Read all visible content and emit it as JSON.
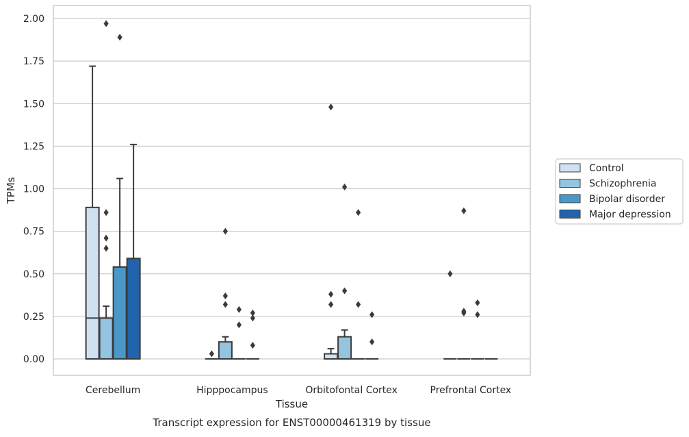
{
  "chart_data": {
    "type": "boxplot",
    "title": "",
    "caption": "Transcript expression for ENST00000461319 by tissue",
    "xlabel": "Tissue",
    "ylabel": "TPMs",
    "ylim": [
      -0.1,
      2.07
    ],
    "yticks": [
      0.0,
      0.25,
      0.5,
      0.75,
      1.0,
      1.25,
      1.5,
      1.75,
      2.0
    ],
    "ytick_labels": [
      "0.00",
      "0.25",
      "0.50",
      "0.75",
      "1.00",
      "1.25",
      "1.50",
      "1.75",
      "2.00"
    ],
    "grid": "horizontal",
    "legend_position": "right",
    "categories": [
      "Cerebellum",
      "Hipppocampus",
      "Orbitofontal Cortex",
      "Prefrontal Cortex"
    ],
    "series": [
      {
        "name": "Control",
        "color": "#d0e1f2",
        "boxes": [
          {
            "q1": 0,
            "median": 0.24,
            "q3": 0.89,
            "whisker_low": 0,
            "whisker_high": 1.72,
            "outliers": []
          },
          {
            "q1": 0,
            "median": 0,
            "q3": 0,
            "whisker_low": 0,
            "whisker_high": 0,
            "outliers": [
              0.03
            ]
          },
          {
            "q1": 0,
            "median": 0,
            "q3": 0.03,
            "whisker_low": 0,
            "whisker_high": 0.06,
            "outliers": [
              0.32,
              0.38,
              1.48
            ]
          },
          {
            "q1": 0,
            "median": 0,
            "q3": 0,
            "whisker_low": 0,
            "whisker_high": 0,
            "outliers": [
              0.5
            ]
          }
        ]
      },
      {
        "name": "Schizophrenia",
        "color": "#94c4df",
        "boxes": [
          {
            "q1": 0,
            "median": 0.24,
            "q3": 0.24,
            "whisker_low": 0,
            "whisker_high": 0.31,
            "outliers": [
              0.65,
              0.71,
              0.86,
              1.97
            ]
          },
          {
            "q1": 0,
            "median": 0,
            "q3": 0.1,
            "whisker_low": 0,
            "whisker_high": 0.13,
            "outliers": [
              0.32,
              0.37,
              0.75
            ]
          },
          {
            "q1": 0,
            "median": 0,
            "q3": 0.13,
            "whisker_low": 0,
            "whisker_high": 0.17,
            "outliers": [
              0.4,
              1.01
            ]
          },
          {
            "q1": 0,
            "median": 0,
            "q3": 0,
            "whisker_low": 0,
            "whisker_high": 0,
            "outliers": [
              0.27,
              0.28,
              0.87
            ]
          }
        ]
      },
      {
        "name": "Bipolar disorder",
        "color": "#4a98c9",
        "boxes": [
          {
            "q1": 0,
            "median": 0.54,
            "q3": 0.54,
            "whisker_low": 0,
            "whisker_high": 1.06,
            "outliers": [
              1.89
            ]
          },
          {
            "q1": 0,
            "median": 0,
            "q3": 0,
            "whisker_low": 0,
            "whisker_high": 0,
            "outliers": [
              0.2,
              0.29
            ]
          },
          {
            "q1": 0,
            "median": 0,
            "q3": 0,
            "whisker_low": 0,
            "whisker_high": 0,
            "outliers": [
              0.32,
              0.86
            ]
          },
          {
            "q1": 0,
            "median": 0,
            "q3": 0,
            "whisker_low": 0,
            "whisker_high": 0,
            "outliers": [
              0.26,
              0.33
            ]
          }
        ]
      },
      {
        "name": "Major depression",
        "color": "#2164ab",
        "boxes": [
          {
            "q1": 0,
            "median": 0.59,
            "q3": 0.59,
            "whisker_low": 0,
            "whisker_high": 1.26,
            "outliers": []
          },
          {
            "q1": 0,
            "median": 0,
            "q3": 0,
            "whisker_low": 0,
            "whisker_high": 0,
            "outliers": [
              0.08,
              0.24,
              0.27
            ]
          },
          {
            "q1": 0,
            "median": 0,
            "q3": 0,
            "whisker_low": 0,
            "whisker_high": 0,
            "outliers": [
              0.1,
              0.26
            ]
          },
          {
            "q1": 0,
            "median": 0,
            "q3": 0,
            "whisker_low": 0,
            "whisker_high": 0,
            "outliers": []
          }
        ]
      }
    ],
    "colors": {
      "box_edge": "#3b3b3b",
      "grid": "#cccccc",
      "frame": "#cccccc",
      "text": "#262626"
    }
  }
}
